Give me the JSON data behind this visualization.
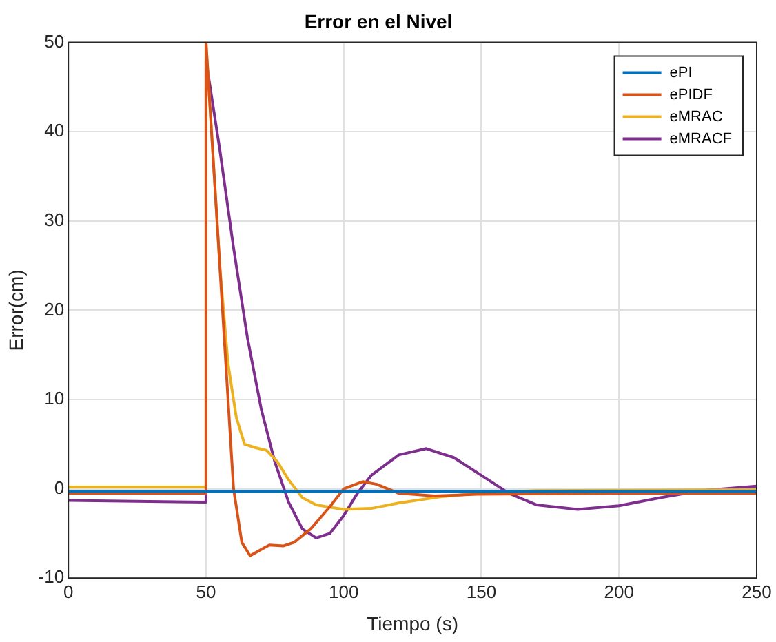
{
  "chart_data": {
    "type": "line",
    "title": "Error en el Nivel",
    "xlabel": "Tiempo (s)",
    "ylabel": "Error(cm)",
    "xlim": [
      0,
      250
    ],
    "xticks": [
      0,
      50,
      100,
      150,
      200,
      250
    ],
    "ylim": [
      -10,
      50
    ],
    "yticks": [
      -10,
      0,
      10,
      20,
      30,
      40,
      50
    ],
    "grid": true,
    "legend": "top right",
    "marker": "none",
    "line_style": "solid",
    "series": [
      {
        "name": "ePI",
        "color": "#0072bd",
        "x": [
          0,
          50,
          100,
          150,
          200,
          250
        ],
        "values": [
          -0.3,
          -0.3,
          -0.3,
          -0.3,
          -0.3,
          -0.3
        ]
      },
      {
        "name": "ePIDF",
        "color": "#d95319",
        "x": [
          0,
          50,
          50,
          53,
          56,
          58,
          60,
          63,
          66,
          70,
          73,
          78,
          82,
          88,
          95,
          100,
          107,
          112,
          120,
          133,
          150,
          200,
          250
        ],
        "values": [
          -0.5,
          -0.5,
          50,
          35,
          20,
          10,
          0,
          -6,
          -7.5,
          -6.8,
          -6.3,
          -6.4,
          -6,
          -4.5,
          -2,
          0,
          0.8,
          0.5,
          -0.5,
          -0.8,
          -0.6,
          -0.5,
          -0.5
        ]
      },
      {
        "name": "eMRAC",
        "color": "#edb120",
        "x": [
          0,
          50,
          50,
          52,
          55,
          58,
          61,
          64,
          68,
          72,
          76,
          80,
          85,
          90,
          100,
          110,
          120,
          135,
          150,
          170,
          250
        ],
        "values": [
          0.2,
          0.2,
          50,
          40,
          25,
          14,
          8,
          5,
          4.6,
          4.3,
          3,
          1,
          -1,
          -1.8,
          -2.3,
          -2.2,
          -1.6,
          -0.9,
          -0.5,
          -0.2,
          -0.1
        ]
      },
      {
        "name": "eMRACF",
        "color": "#7e2f8e",
        "x": [
          0,
          50,
          50,
          55,
          60,
          65,
          70,
          75,
          80,
          85,
          90,
          95,
          100,
          105,
          110,
          120,
          130,
          140,
          150,
          160,
          170,
          185,
          200,
          215,
          230,
          250
        ],
        "values": [
          -1.3,
          -1.5,
          48,
          38,
          27,
          17,
          9,
          3,
          -1.5,
          -4.5,
          -5.5,
          -5,
          -3,
          -0.5,
          1.5,
          3.8,
          4.5,
          3.5,
          1.5,
          -0.5,
          -1.8,
          -2.3,
          -1.9,
          -1,
          -0.2,
          0.3
        ]
      }
    ]
  }
}
